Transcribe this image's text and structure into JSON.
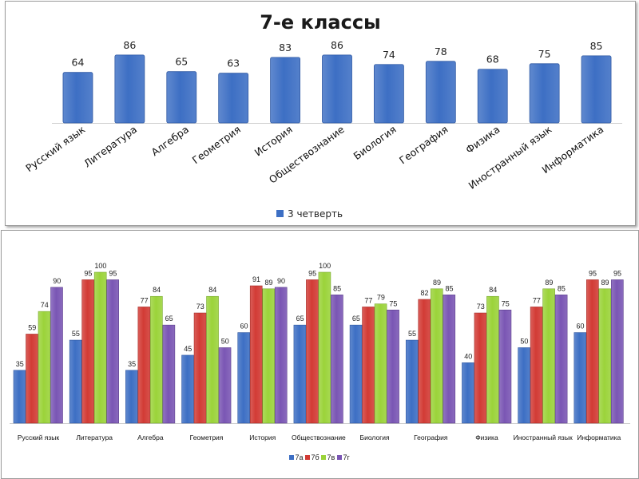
{
  "colors": {
    "blue": "#3d6fc4",
    "red": "#d23b35",
    "green": "#9bd33a",
    "purple": "#7a56b4"
  },
  "chart_data": [
    {
      "type": "bar",
      "title": "7-е классы",
      "categories": [
        "Русский язык",
        "Литература",
        "Алгебра",
        "Геометрия",
        "История",
        "Обществознание",
        "Биология",
        "География",
        "Физика",
        "Иностранный язык",
        "Информатика"
      ],
      "series": [
        {
          "name": "3 четверть",
          "values": [
            64,
            86,
            65,
            63,
            83,
            86,
            74,
            78,
            68,
            75,
            85
          ]
        }
      ],
      "ylim": [
        0,
        100
      ],
      "grid": false,
      "legend": "bottom"
    },
    {
      "type": "bar",
      "title": "",
      "categories": [
        "Русский язык",
        "Литература",
        "Алгебра",
        "Геометрия",
        "История",
        "Обществознание",
        "Биология",
        "География",
        "Физика",
        "Иностранный язык",
        "Информатика"
      ],
      "series": [
        {
          "name": "7а",
          "values": [
            35,
            55,
            35,
            45,
            60,
            65,
            65,
            55,
            40,
            50,
            60
          ]
        },
        {
          "name": "7б",
          "values": [
            59,
            95,
            77,
            73,
            91,
            95,
            77,
            82,
            73,
            77,
            95
          ]
        },
        {
          "name": "7в",
          "values": [
            74,
            100,
            84,
            84,
            89,
            100,
            79,
            89,
            84,
            89,
            89
          ]
        },
        {
          "name": "7г",
          "values": [
            90,
            95,
            65,
            50,
            90,
            85,
            75,
            85,
            75,
            85,
            95
          ]
        }
      ],
      "ylim": [
        0,
        100
      ],
      "grid": false,
      "legend": "bottom"
    }
  ]
}
